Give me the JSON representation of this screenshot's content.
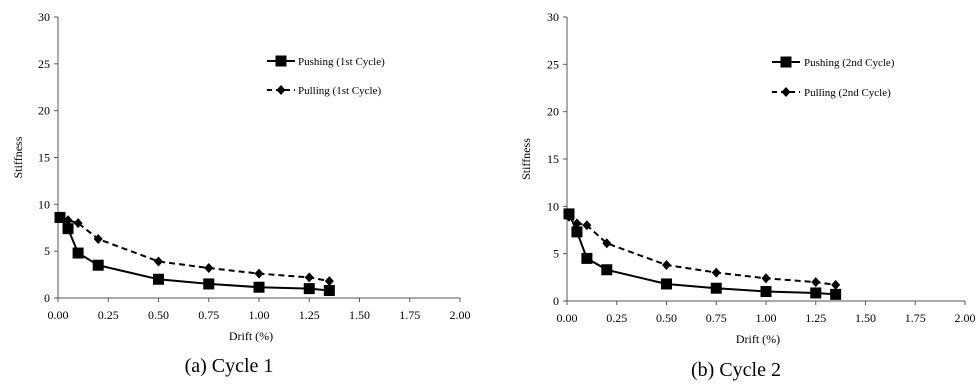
{
  "chart_data": [
    {
      "type": "line",
      "caption": "(a) Cycle 1",
      "xlabel": "Drift (%)",
      "ylabel": "Stiffness",
      "xlim": [
        0,
        2.0
      ],
      "ylim": [
        0,
        30
      ],
      "xticks": [
        "0.00",
        "0.25",
        "0.50",
        "0.75",
        "1.00",
        "1.25",
        "1.50",
        "1.75",
        "2.00"
      ],
      "yticks": [
        "0",
        "5",
        "10",
        "15",
        "20",
        "25",
        "30"
      ],
      "grid": false,
      "legend_position": "top-right",
      "series": [
        {
          "name": "Pushing (1st Cycle)",
          "style": "solid",
          "marker": "square",
          "color": "#000000",
          "x": [
            0.01,
            0.05,
            0.1,
            0.2,
            0.5,
            0.75,
            1.0,
            1.25,
            1.35
          ],
          "y": [
            8.6,
            7.4,
            4.8,
            3.5,
            2.0,
            1.5,
            1.15,
            1.0,
            0.8
          ]
        },
        {
          "name": "Pulling (1st Cycle)",
          "style": "dashed",
          "marker": "diamond",
          "color": "#000000",
          "x": [
            0.01,
            0.05,
            0.1,
            0.2,
            0.5,
            0.75,
            1.0,
            1.25,
            1.35
          ],
          "y": [
            8.7,
            8.3,
            8.0,
            6.3,
            3.9,
            3.2,
            2.6,
            2.2,
            1.8
          ]
        }
      ]
    },
    {
      "type": "line",
      "caption": "(b) Cycle 2",
      "xlabel": "Drift (%)",
      "ylabel": "Stiffness",
      "xlim": [
        0,
        2.0
      ],
      "ylim": [
        0,
        30
      ],
      "xticks": [
        "0.00",
        "0.25",
        "0.50",
        "0.75",
        "1.00",
        "1.25",
        "1.50",
        "1.75",
        "2.00"
      ],
      "yticks": [
        "0",
        "5",
        "10",
        "15",
        "20",
        "25",
        "30"
      ],
      "grid": false,
      "legend_position": "top-right",
      "series": [
        {
          "name": "Pushing (2nd Cycle)",
          "style": "solid",
          "marker": "square",
          "color": "#000000",
          "x": [
            0.01,
            0.05,
            0.1,
            0.2,
            0.5,
            0.75,
            1.0,
            1.25,
            1.35
          ],
          "y": [
            9.2,
            7.3,
            4.5,
            3.3,
            1.8,
            1.35,
            1.0,
            0.85,
            0.7
          ]
        },
        {
          "name": "Pulling (2nd Cycle)",
          "style": "dashed",
          "marker": "diamond",
          "color": "#000000",
          "x": [
            0.01,
            0.05,
            0.1,
            0.2,
            0.5,
            0.75,
            1.0,
            1.25,
            1.35
          ],
          "y": [
            8.9,
            8.2,
            8.0,
            6.1,
            3.8,
            3.0,
            2.4,
            2.0,
            1.7
          ]
        }
      ]
    }
  ]
}
